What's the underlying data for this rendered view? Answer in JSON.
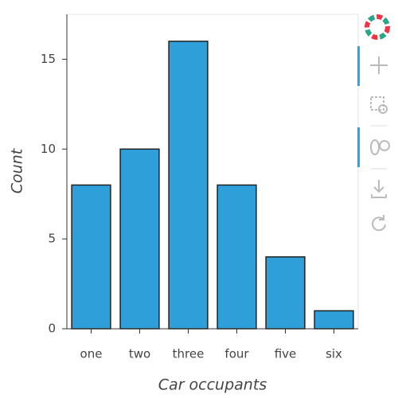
{
  "chart_data": {
    "type": "bar",
    "x_label": "Car occupants",
    "y_label": "Count",
    "categories": [
      "one",
      "two",
      "three",
      "four",
      "five",
      "six"
    ],
    "values": [
      8,
      10,
      16,
      8,
      4,
      1
    ],
    "color": "#2e9fd8",
    "ylim": [
      0,
      17.5
    ],
    "yticks": [
      0,
      5,
      10,
      15
    ],
    "grid": false
  }
}
